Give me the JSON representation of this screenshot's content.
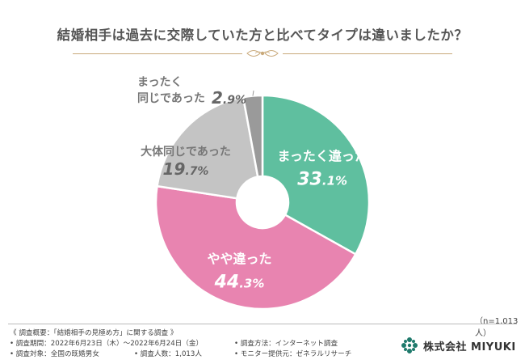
{
  "colors": {
    "accent_green": "#5fbf9f",
    "accent_pink": "#e884b0",
    "grey_light": "#c4c4c4",
    "grey_dark": "#9a9a9a",
    "gold": "#c9a97a",
    "label_grey": "#888888"
  },
  "chart_data": {
    "type": "pie",
    "donut": true,
    "title": "結婚相手は過去に交際していた方と比べてタイプは違いましたか？",
    "sample_size": "（n=1,013人）",
    "slices": [
      {
        "label": "まったく違った",
        "value": 33.1,
        "display": "33.1%",
        "color": "#5fbf9f"
      },
      {
        "label": "やや違った",
        "value": 44.3,
        "display": "44.3%",
        "color": "#e884b0"
      },
      {
        "label": "大体同じであった",
        "value": 19.7,
        "display": "19.7%",
        "color": "#c4c4c4"
      },
      {
        "label": "まったく同じであった",
        "label_lines": [
          "まったく",
          "同じであった"
        ],
        "value": 2.9,
        "display": "2.9%",
        "color": "#9a9a9a"
      }
    ]
  },
  "survey": {
    "heading": "《 調査概要：「結婚相手の見極め方」に関する調査 》",
    "period": "• 調査期間：2022年6月23日（木）〜2022年6月24日（金）",
    "method": "• 調査方法：インターネット調査",
    "target": "• 調査対象：全国の既婚男女",
    "count": "• 調査人数：1,013人",
    "provider": "• モニター提供元：ゼネラルリサーチ"
  },
  "logo": {
    "text": "株式会社 MIYUKI",
    "icon": "flower-logo-icon"
  }
}
